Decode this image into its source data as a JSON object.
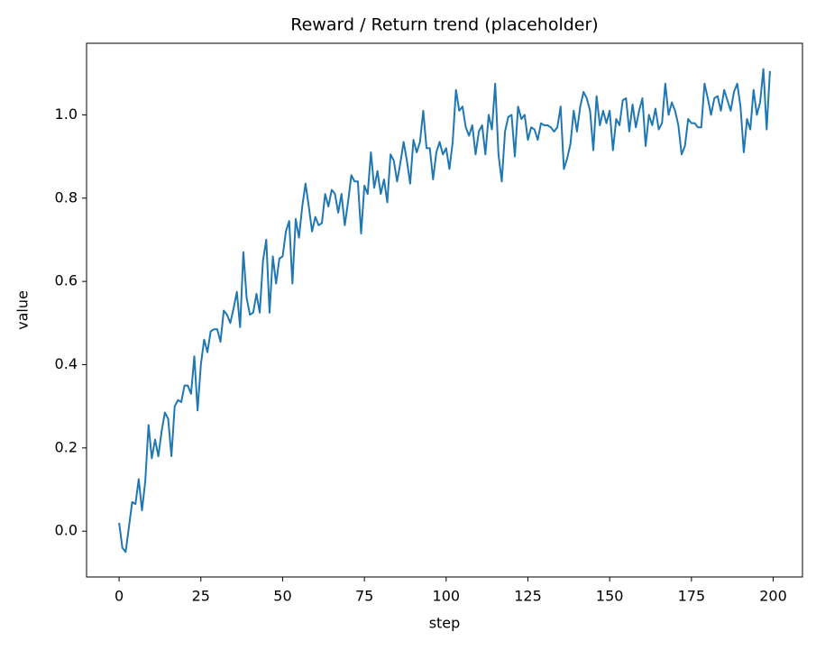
{
  "chart_data": {
    "type": "line",
    "title": "Reward / Return trend (placeholder)",
    "x_label": "step",
    "y_label": "value",
    "x": [
      0,
      1,
      2,
      3,
      4,
      5,
      6,
      7,
      8,
      9,
      10,
      11,
      12,
      13,
      14,
      15,
      16,
      17,
      18,
      19,
      20,
      21,
      22,
      23,
      24,
      25,
      26,
      27,
      28,
      29,
      30,
      31,
      32,
      33,
      34,
      35,
      36,
      37,
      38,
      39,
      40,
      41,
      42,
      43,
      44,
      45,
      46,
      47,
      48,
      49,
      50,
      51,
      52,
      53,
      54,
      55,
      56,
      57,
      58,
      59,
      60,
      61,
      62,
      63,
      64,
      65,
      66,
      67,
      68,
      69,
      70,
      71,
      72,
      73,
      74,
      75,
      76,
      77,
      78,
      79,
      80,
      81,
      82,
      83,
      84,
      85,
      86,
      87,
      88,
      89,
      90,
      91,
      92,
      93,
      94,
      95,
      96,
      97,
      98,
      99,
      100,
      101,
      102,
      103,
      104,
      105,
      106,
      107,
      108,
      109,
      110,
      111,
      112,
      113,
      114,
      115,
      116,
      117,
      118,
      119,
      120,
      121,
      122,
      123,
      124,
      125,
      126,
      127,
      128,
      129,
      130,
      131,
      132,
      133,
      134,
      135,
      136,
      137,
      138,
      139,
      140,
      141,
      142,
      143,
      144,
      145,
      146,
      147,
      148,
      149,
      150,
      151,
      152,
      153,
      154,
      155,
      156,
      157,
      158,
      159,
      160,
      161,
      162,
      163,
      164,
      165,
      166,
      167,
      168,
      169,
      170,
      171,
      172,
      173,
      174,
      175,
      176,
      177,
      178,
      179,
      180,
      181,
      182,
      183,
      184,
      185,
      186,
      187,
      188,
      189,
      190,
      191,
      192,
      193,
      194,
      195,
      196,
      197,
      198,
      199
    ],
    "series": [
      {
        "color": "#1f77b4",
        "values": [
          0.02,
          -0.04,
          -0.05,
          0.01,
          0.07,
          0.065,
          0.125,
          0.05,
          0.12,
          0.255,
          0.175,
          0.22,
          0.18,
          0.24,
          0.285,
          0.27,
          0.18,
          0.3,
          0.315,
          0.31,
          0.35,
          0.35,
          0.33,
          0.42,
          0.29,
          0.4,
          0.46,
          0.43,
          0.48,
          0.485,
          0.485,
          0.455,
          0.53,
          0.52,
          0.5,
          0.535,
          0.575,
          0.49,
          0.67,
          0.56,
          0.52,
          0.525,
          0.57,
          0.525,
          0.65,
          0.7,
          0.525,
          0.66,
          0.595,
          0.655,
          0.66,
          0.72,
          0.745,
          0.595,
          0.75,
          0.705,
          0.78,
          0.835,
          0.78,
          0.72,
          0.755,
          0.735,
          0.74,
          0.81,
          0.78,
          0.82,
          0.81,
          0.765,
          0.81,
          0.735,
          0.79,
          0.855,
          0.84,
          0.84,
          0.715,
          0.83,
          0.81,
          0.91,
          0.825,
          0.865,
          0.81,
          0.845,
          0.79,
          0.905,
          0.89,
          0.84,
          0.885,
          0.935,
          0.89,
          0.835,
          0.94,
          0.91,
          0.935,
          1.01,
          0.92,
          0.92,
          0.845,
          0.91,
          0.935,
          0.905,
          0.92,
          0.87,
          0.935,
          1.06,
          1.01,
          1.02,
          0.97,
          0.95,
          0.975,
          0.905,
          0.96,
          0.975,
          0.905,
          1.0,
          0.965,
          1.075,
          0.905,
          0.84,
          0.96,
          0.995,
          1.0,
          0.9,
          1.02,
          0.99,
          1.0,
          0.94,
          0.97,
          0.965,
          0.94,
          0.98,
          0.975,
          0.975,
          0.97,
          0.96,
          0.97,
          1.02,
          0.87,
          0.895,
          0.93,
          1.01,
          0.96,
          1.02,
          1.055,
          1.04,
          1.01,
          0.915,
          1.045,
          0.975,
          1.01,
          0.98,
          1.01,
          0.915,
          0.99,
          0.975,
          1.035,
          1.04,
          0.96,
          1.025,
          0.97,
          1.01,
          1.04,
          0.925,
          1.0,
          0.975,
          1.015,
          0.965,
          0.98,
          1.075,
          1.0,
          1.03,
          1.01,
          0.975,
          0.905,
          0.925,
          0.99,
          0.98,
          0.98,
          0.97,
          0.97,
          1.075,
          1.04,
          1.0,
          1.04,
          1.045,
          1.01,
          1.06,
          1.035,
          1.01,
          1.055,
          1.075,
          1.02,
          0.91,
          0.99,
          0.965,
          1.06,
          1.0,
          1.03,
          1.11,
          0.965,
          1.105
        ]
      }
    ],
    "xlim": [
      -9.95,
      208.95
    ],
    "ylim": [
      -0.11,
      1.172
    ],
    "xticks": [
      0,
      25,
      50,
      75,
      100,
      125,
      150,
      175,
      200
    ],
    "yticks": [
      {
        "value": 0,
        "label": "0.0"
      },
      0.2,
      0.4,
      0.6,
      0.8,
      {
        "value": 1,
        "label": "1.0"
      }
    ]
  }
}
